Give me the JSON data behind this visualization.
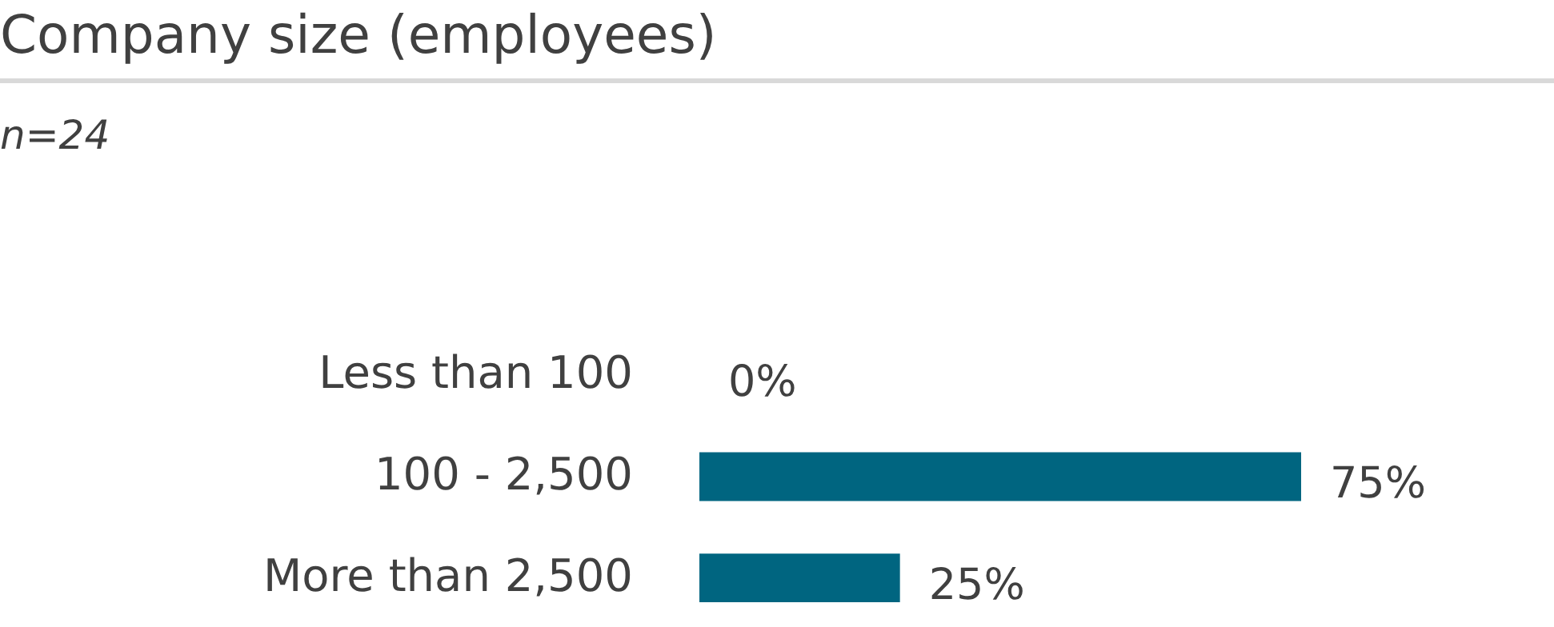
{
  "chart_data": {
    "type": "bar",
    "orientation": "horizontal",
    "title": "Company size (employees)",
    "subtitle": "n=24",
    "categories": [
      "Less than 100",
      "100 - 2,500",
      "More than 2,500"
    ],
    "values": [
      0,
      75,
      25
    ],
    "value_labels": [
      "0%",
      "75%",
      "25%"
    ],
    "color": "#006580"
  }
}
